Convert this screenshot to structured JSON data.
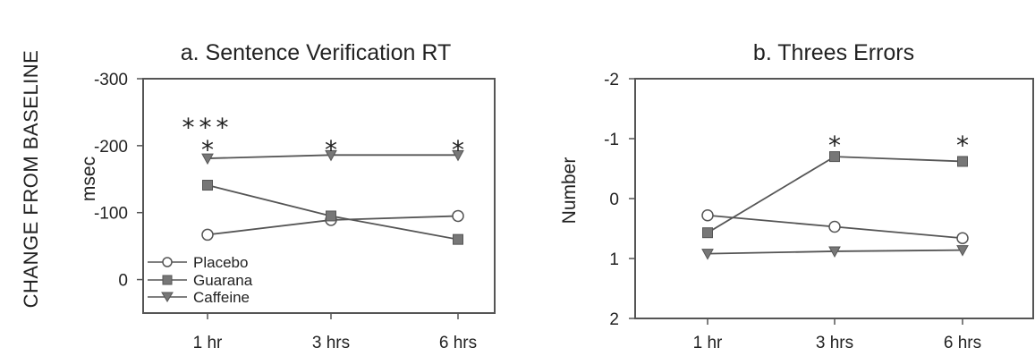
{
  "figure": {
    "shared_ylabel": "CHANGE FROM BASELINE"
  },
  "legend": {
    "items": [
      {
        "label": "Placebo",
        "marker": "circle-open"
      },
      {
        "label": "Guarana",
        "marker": "square-filled"
      },
      {
        "label": "Caffeine",
        "marker": "triangle-down-filled"
      }
    ]
  },
  "colors": {
    "line": "#555555",
    "marker_fill": "#777777",
    "text": "#222222"
  },
  "chart_data": [
    {
      "id": "a",
      "type": "line",
      "title": "a. Sentence Verification RT",
      "ylabel": "msec",
      "xlabel": "",
      "categories": [
        "1 hr",
        "3 hrs",
        "6 hrs"
      ],
      "ylim": [
        -300,
        50
      ],
      "y_inverted": true,
      "yticks": [
        -300,
        -200,
        -100,
        0
      ],
      "ytick_labels": [
        "-300",
        "-200",
        "-100",
        "0"
      ],
      "grid": false,
      "legend_position": "bottom-left",
      "series": [
        {
          "name": "Placebo",
          "values": [
            -67,
            -89,
            -95
          ]
        },
        {
          "name": "Guarana",
          "values": [
            -141,
            -95,
            -60
          ]
        },
        {
          "name": "Caffeine",
          "values": [
            -181,
            -186,
            -186
          ]
        }
      ],
      "annotations": [
        {
          "category": "1 hr",
          "text": "***",
          "row": 2
        },
        {
          "category": "1 hr",
          "text": "*",
          "row": 1
        },
        {
          "category": "3 hrs",
          "text": "*",
          "row": 1
        },
        {
          "category": "6 hrs",
          "text": "*",
          "row": 1
        }
      ]
    },
    {
      "id": "b",
      "type": "line",
      "title": "b. Threes Errors",
      "ylabel": "Number",
      "xlabel": "",
      "categories": [
        "1 hr",
        "3 hrs",
        "6 hrs"
      ],
      "ylim": [
        -2,
        2
      ],
      "y_inverted": true,
      "yticks": [
        -2,
        -1,
        0,
        1,
        2
      ],
      "ytick_labels": [
        "-2",
        "-1",
        "0",
        "1",
        "2"
      ],
      "grid": false,
      "series": [
        {
          "name": "Placebo",
          "values": [
            0.28,
            0.47,
            0.66
          ]
        },
        {
          "name": "Guarana",
          "values": [
            0.57,
            -0.7,
            -0.62
          ]
        },
        {
          "name": "Caffeine",
          "values": [
            0.92,
            0.88,
            0.86
          ]
        }
      ],
      "annotations": [
        {
          "category": "3 hrs",
          "text": "*",
          "row": 1
        },
        {
          "category": "6 hrs",
          "text": "*",
          "row": 1
        }
      ]
    }
  ]
}
